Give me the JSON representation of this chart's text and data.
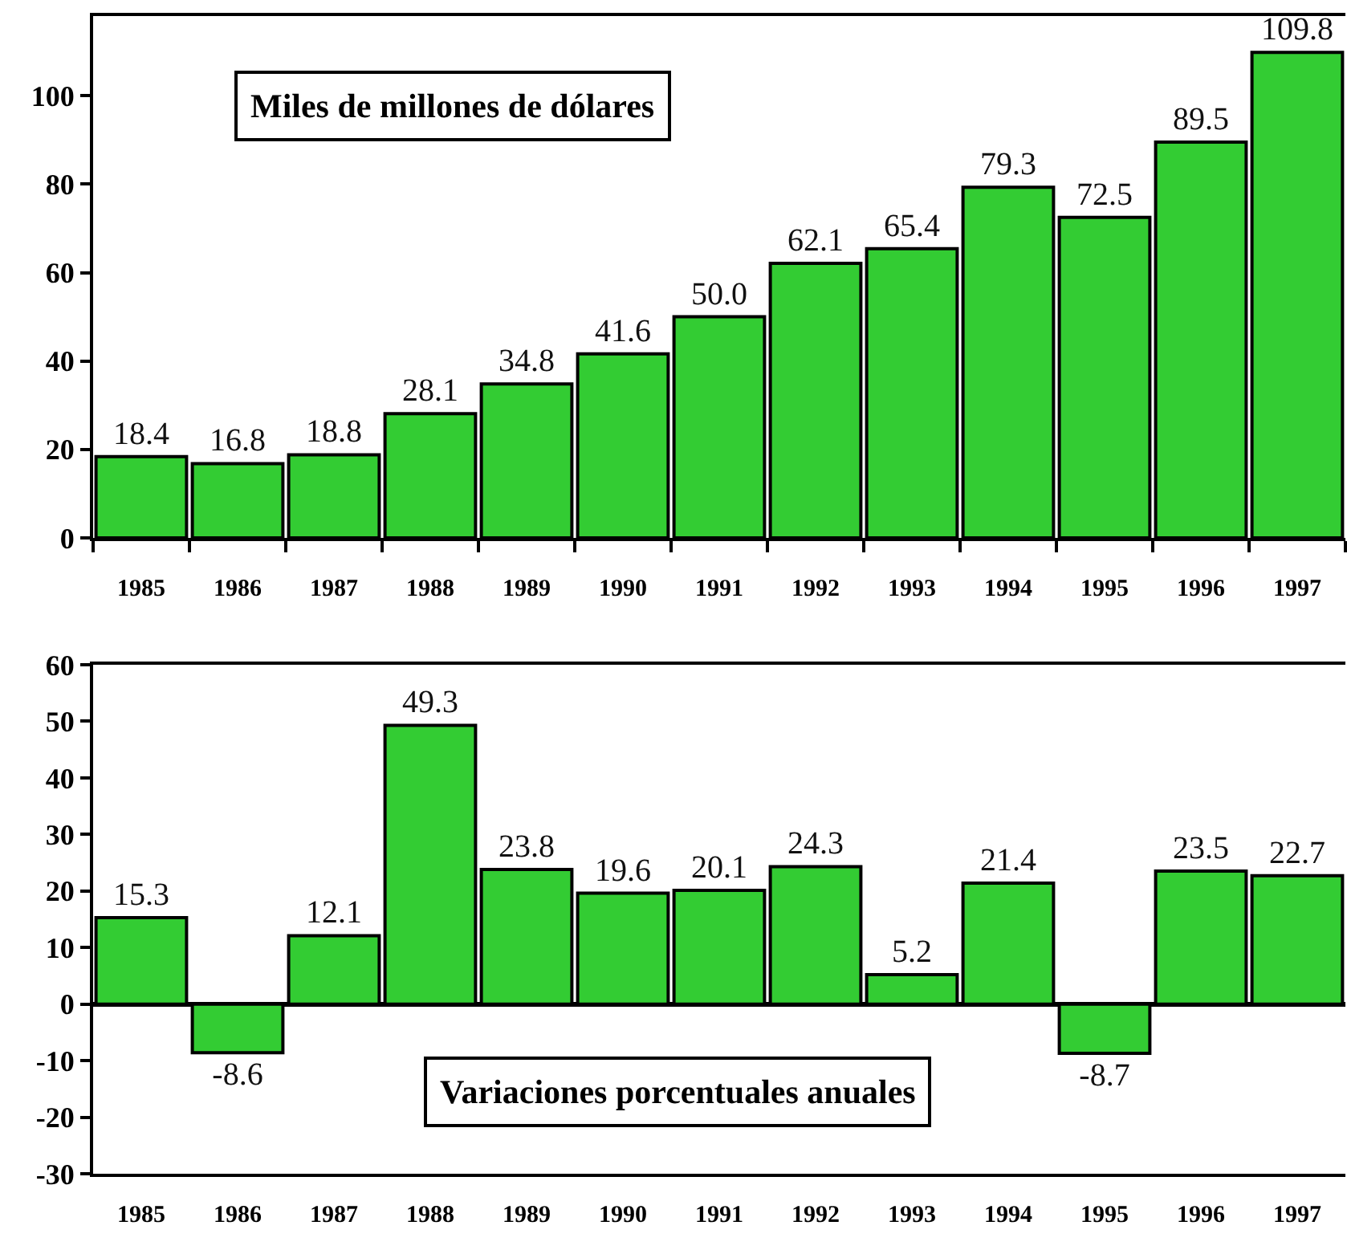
{
  "chart_data": [
    {
      "type": "bar",
      "title": "Miles de millones de dólares",
      "categories": [
        "1985",
        "1986",
        "1987",
        "1988",
        "1989",
        "1990",
        "1991",
        "1992",
        "1993",
        "1994",
        "1995",
        "1996",
        "1997"
      ],
      "values": [
        18.4,
        16.8,
        18.8,
        28.1,
        34.8,
        41.6,
        50.0,
        62.1,
        65.4,
        79.3,
        72.5,
        89.5,
        109.8
      ],
      "value_labels": [
        "18.4",
        "16.8",
        "18.8",
        "28.1",
        "34.8",
        "41.6",
        "50.0",
        "62.1",
        "65.4",
        "79.3",
        "72.5",
        "89.5",
        "109.8"
      ],
      "color": "#33cc33",
      "ylim": [
        0,
        118
      ],
      "yticks": [
        0,
        20,
        40,
        60,
        80,
        100
      ]
    },
    {
      "type": "bar",
      "title": "Variaciones porcentuales anuales",
      "categories": [
        "1985",
        "1986",
        "1987",
        "1988",
        "1989",
        "1990",
        "1991",
        "1992",
        "1993",
        "1994",
        "1995",
        "1996",
        "1997"
      ],
      "values": [
        15.3,
        -8.6,
        12.1,
        49.3,
        23.8,
        19.6,
        20.1,
        24.3,
        5.2,
        21.4,
        -8.7,
        23.5,
        22.7
      ],
      "data_labels": true,
      "color": "#33cc33",
      "ylim": [
        -30,
        60
      ],
      "yticks": [
        -30,
        -20,
        -10,
        0,
        10,
        20,
        30,
        40,
        50,
        60
      ]
    }
  ]
}
